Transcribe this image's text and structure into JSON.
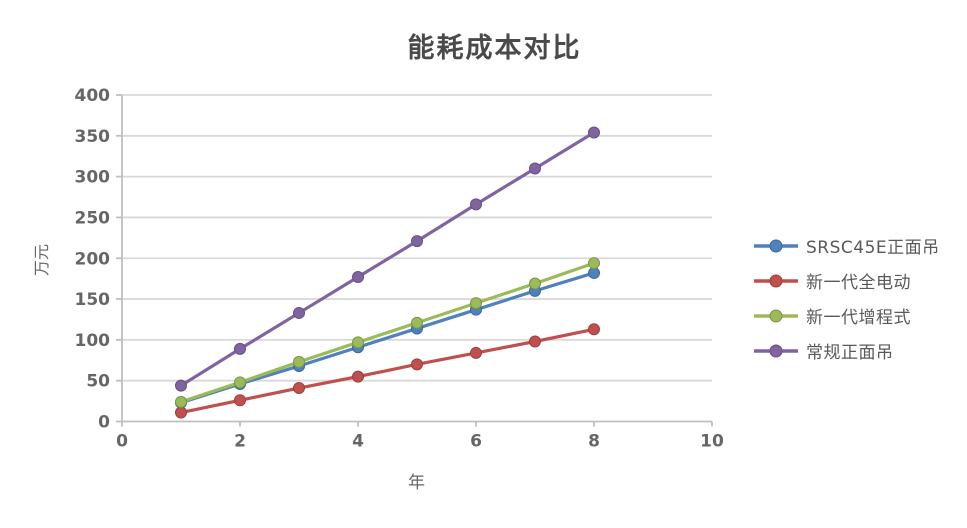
{
  "title": "能耗成本对比",
  "chart_data": {
    "type": "line",
    "title": "能耗成本对比",
    "xlabel": "年",
    "ylabel": "万元",
    "xlim": [
      0,
      10
    ],
    "ylim": [
      0,
      400
    ],
    "x_ticks": [
      0,
      2,
      4,
      6,
      8,
      10
    ],
    "y_ticks": [
      0,
      50,
      100,
      150,
      200,
      250,
      300,
      350,
      400
    ],
    "grid": "horizontal",
    "legend_position": "right",
    "x": [
      1,
      2,
      3,
      4,
      5,
      6,
      7,
      8
    ],
    "series": [
      {
        "name": "SRSC45E正面吊",
        "color": "#4F81BD",
        "values": [
          23,
          46,
          68,
          91,
          114,
          137,
          160,
          182
        ]
      },
      {
        "name": "新一代全电动",
        "color": "#C0504D",
        "values": [
          11,
          26,
          41,
          55,
          70,
          84,
          98,
          113
        ]
      },
      {
        "name": "新一代增程式",
        "color": "#9BBB59",
        "values": [
          24,
          48,
          73,
          97,
          121,
          145,
          169,
          194
        ]
      },
      {
        "name": "常规正面吊",
        "color": "#8064A2",
        "values": [
          44,
          89,
          133,
          177,
          221,
          266,
          310,
          354
        ]
      }
    ],
    "colors": {
      "background": "#FFFFFF",
      "gridline": "#D9D9D9",
      "axis": "#BFBFBF",
      "tick_label": "#666666",
      "title_text": "#4A4A4A",
      "legend_text": "#595959"
    }
  }
}
